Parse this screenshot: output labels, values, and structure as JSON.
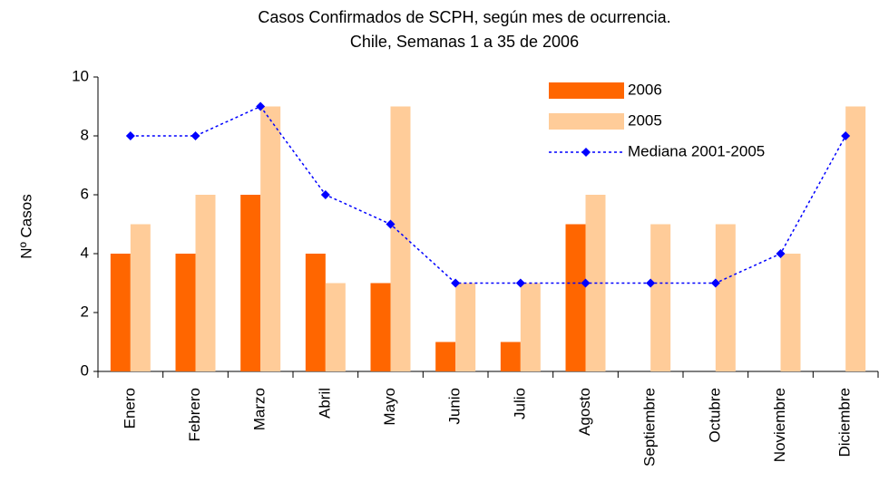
{
  "chart_data": {
    "type": "bar",
    "title": "Casos Confirmados de SCPH, según mes de ocurrencia.",
    "subtitle": "Chile, Semanas 1 a 35 de 2006",
    "y_label": "Nº Casos",
    "categories": [
      "Enero",
      "Febrero",
      "Marzo",
      "Abril",
      "Mayo",
      "Junio",
      "Julio",
      "Agosto",
      "Septiembre",
      "Octubre",
      "Noviembre",
      "Diciembre"
    ],
    "series": [
      {
        "name": "2006",
        "type": "bar",
        "color": "#ff6600",
        "values": [
          4,
          4,
          6,
          4,
          3,
          1,
          1,
          5,
          null,
          null,
          null,
          null
        ]
      },
      {
        "name": "2005",
        "type": "bar",
        "color": "#ffcc99",
        "values": [
          5,
          6,
          9,
          3,
          9,
          3,
          3,
          6,
          5,
          5,
          4,
          9
        ]
      },
      {
        "name": "Mediana 2001-2005",
        "type": "line",
        "color": "#0000ff",
        "values": [
          8,
          8,
          9,
          6,
          5,
          3,
          3,
          3,
          3,
          3,
          4,
          8
        ]
      }
    ],
    "ylim": [
      0,
      10
    ],
    "yticks": [
      0,
      2,
      4,
      6,
      8,
      10
    ],
    "grid": false,
    "legend": "top-right"
  }
}
